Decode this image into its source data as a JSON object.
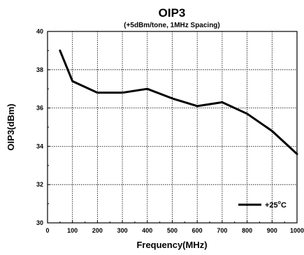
{
  "chart_data": {
    "type": "line",
    "title": "OIP3",
    "subtitle": "(+5dBm/tone, 1MHz Spacing)",
    "xlabel": "Frequency(MHz)",
    "ylabel": "OIP3(dBm)",
    "xlim": [
      0,
      1000
    ],
    "ylim": [
      30,
      40
    ],
    "xticks": [
      0,
      100,
      200,
      300,
      400,
      500,
      600,
      700,
      800,
      900,
      1000
    ],
    "yticks": [
      30,
      32,
      34,
      36,
      38,
      40
    ],
    "grid": true,
    "legend_position": "bottom-right",
    "series": [
      {
        "name": "+25°C",
        "legend_main": "+25",
        "legend_sup": "o",
        "legend_tail": "C",
        "color": "#000000",
        "x": [
          50,
          100,
          200,
          300,
          400,
          500,
          600,
          700,
          800,
          900,
          1000
        ],
        "y": [
          39.0,
          37.4,
          36.8,
          36.8,
          37.0,
          36.5,
          36.1,
          36.3,
          35.7,
          34.8,
          33.6
        ]
      }
    ]
  }
}
